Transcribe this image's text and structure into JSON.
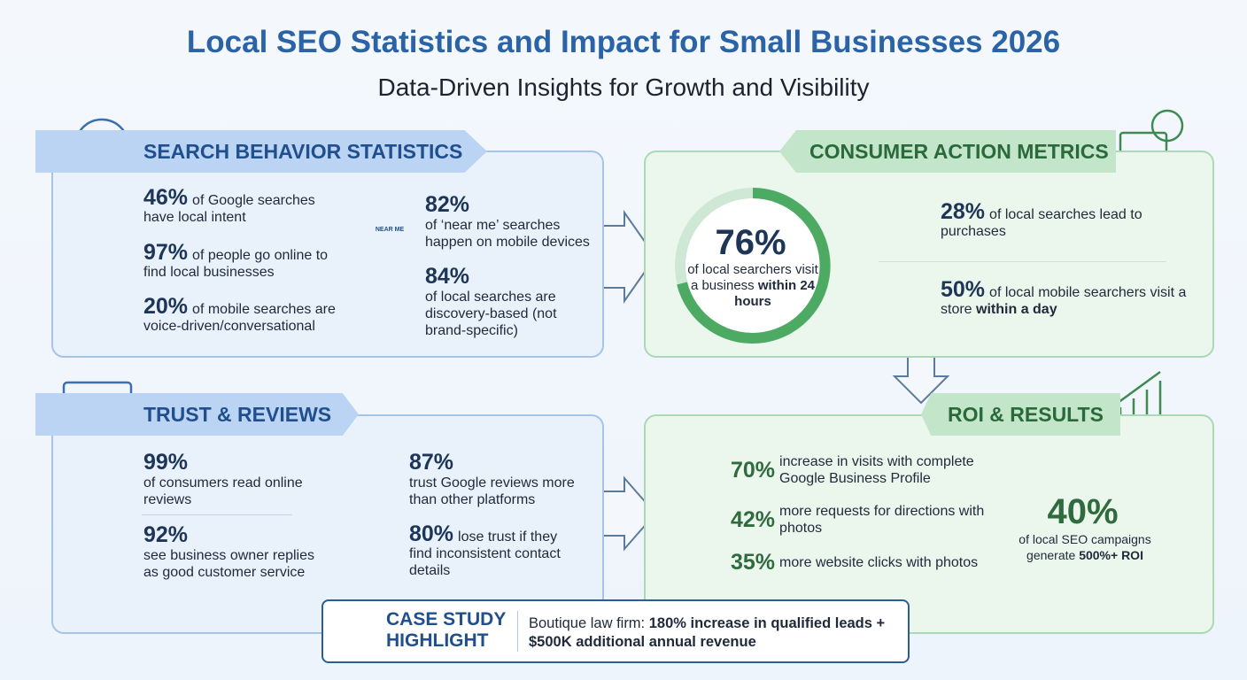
{
  "header": {
    "title": "Local SEO Statistics and Impact for Small Businesses 2026",
    "subtitle": "Data-Driven Insights for Growth and Visibility"
  },
  "search_behavior": {
    "heading": "SEARCH BEHAVIOR STATISTICS",
    "near_me_icon": "NEAR ME",
    "stats": [
      {
        "figure": "46%",
        "text": "of Google searches have local intent"
      },
      {
        "figure": "97%",
        "text": "of people go online to find local businesses"
      },
      {
        "figure": "20%",
        "text": "of mobile searches are voice-driven/conversational"
      },
      {
        "figure": "82%",
        "text": "of ‘near me’ searches happen on mobile devices"
      },
      {
        "figure": "84%",
        "text": "of local searches are discovery-based (not brand-specific)"
      }
    ]
  },
  "consumer_action": {
    "heading": "CONSUMER ACTION METRICS",
    "ring": {
      "figure": "76%",
      "text": "of local searchers visit a business",
      "bold": "within 24 hours"
    },
    "stats": [
      {
        "figure": "28%",
        "text": "of local searches lead to purchases"
      },
      {
        "figure": "50%",
        "text": "of local mobile searchers visit a store",
        "bold": "within a day"
      }
    ]
  },
  "trust_reviews": {
    "heading": "TRUST & REVIEWS",
    "stats": [
      {
        "figure": "99%",
        "text": "of consumers read online reviews"
      },
      {
        "figure": "92%",
        "text": "see business owner replies as good customer service"
      },
      {
        "figure": "87%",
        "text": "trust Google reviews more than other platforms"
      },
      {
        "figure": "80%",
        "text": "lose trust if they find inconsistent contact details"
      }
    ]
  },
  "roi_results": {
    "heading": "ROI & RESULTS",
    "stats": [
      {
        "figure": "70%",
        "text": "increase in visits with complete Google Business Profile"
      },
      {
        "figure": "42%",
        "text": "more requests for directions with photos"
      },
      {
        "figure": "35%",
        "text": "more website clicks with photos"
      }
    ],
    "ring": {
      "figure": "40%",
      "text": "of local SEO campaigns generate",
      "bold": "500%+ ROI"
    }
  },
  "case_study": {
    "label": "CASE STUDY HIGHLIGHT",
    "text": "Boutique law firm:",
    "bold": "180% increase in qualified leads + $500K additional annual revenue"
  }
}
